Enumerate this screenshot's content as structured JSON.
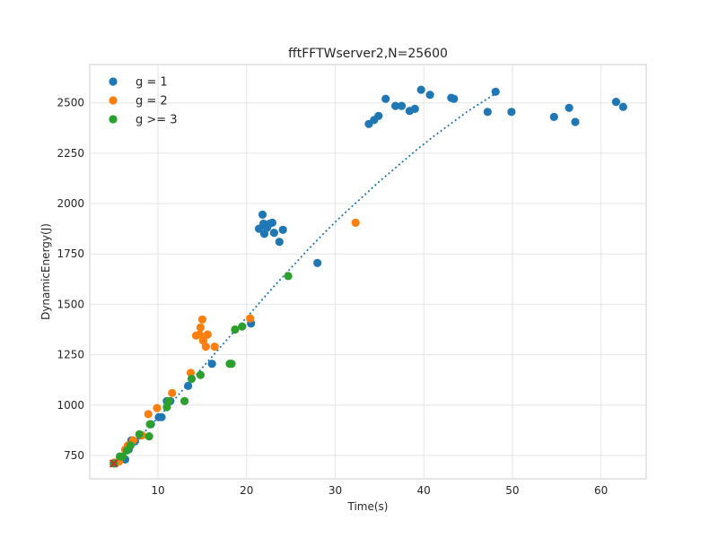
{
  "chart_data": {
    "type": "scatter",
    "title": "fftFFTWserver2,N=25600",
    "xlabel": "Time(s)",
    "ylabel": "DynamicEnergy(J)",
    "xlim": [
      2.3,
      65.1
    ],
    "ylim": [
      634,
      2690
    ],
    "xticks": [
      10,
      20,
      30,
      40,
      50,
      60
    ],
    "yticks": [
      750,
      1000,
      1250,
      1500,
      1750,
      2000,
      2250,
      2500
    ],
    "xtick_labels": [
      "10",
      "20",
      "30",
      "40",
      "50",
      "60"
    ],
    "ytick_labels": [
      "750",
      "1000",
      "1250",
      "1500",
      "1750",
      "2000",
      "2250",
      "2500"
    ],
    "grid": true,
    "legend_position": "top-left",
    "series": [
      {
        "name": "g = 1",
        "color": "#1f77b4",
        "points": [
          [
            5.2,
            712
          ],
          [
            5.9,
            735
          ],
          [
            6.3,
            730
          ],
          [
            6.7,
            780
          ],
          [
            7.0,
            825
          ],
          [
            7.4,
            820
          ],
          [
            8.0,
            850
          ],
          [
            9.2,
            905
          ],
          [
            10.1,
            940
          ],
          [
            10.4,
            940
          ],
          [
            11.0,
            1020
          ],
          [
            11.4,
            1020
          ],
          [
            13.4,
            1095
          ],
          [
            16.1,
            1205
          ],
          [
            20.5,
            1405
          ],
          [
            21.4,
            1875
          ],
          [
            21.8,
            1945
          ],
          [
            21.9,
            1900
          ],
          [
            22.0,
            1850
          ],
          [
            22.3,
            1880
          ],
          [
            22.6,
            1900
          ],
          [
            22.9,
            1905
          ],
          [
            23.1,
            1855
          ],
          [
            23.7,
            1810
          ],
          [
            24.1,
            1870
          ],
          [
            28.0,
            1705
          ],
          [
            33.8,
            2395
          ],
          [
            34.4,
            2415
          ],
          [
            34.9,
            2435
          ],
          [
            35.7,
            2520
          ],
          [
            36.8,
            2485
          ],
          [
            37.5,
            2485
          ],
          [
            38.4,
            2460
          ],
          [
            39.0,
            2470
          ],
          [
            39.7,
            2565
          ],
          [
            40.7,
            2540
          ],
          [
            43.1,
            2525
          ],
          [
            43.4,
            2520
          ],
          [
            47.2,
            2455
          ],
          [
            48.1,
            2555
          ],
          [
            49.9,
            2455
          ],
          [
            54.7,
            2430
          ],
          [
            56.4,
            2475
          ],
          [
            57.1,
            2405
          ],
          [
            61.7,
            2505
          ],
          [
            62.5,
            2480
          ]
        ]
      },
      {
        "name": "g = 2",
        "color": "#ff7f0e",
        "points": [
          [
            5.1,
            715
          ],
          [
            5.6,
            720
          ],
          [
            6.3,
            780
          ],
          [
            6.6,
            800
          ],
          [
            7.2,
            825
          ],
          [
            8.2,
            850
          ],
          [
            8.9,
            955
          ],
          [
            9.9,
            985
          ],
          [
            11.6,
            1060
          ],
          [
            13.7,
            1160
          ],
          [
            14.3,
            1345
          ],
          [
            14.7,
            1350
          ],
          [
            14.8,
            1385
          ],
          [
            15.0,
            1425
          ],
          [
            15.1,
            1320
          ],
          [
            15.4,
            1290
          ],
          [
            15.6,
            1350
          ],
          [
            16.4,
            1290
          ],
          [
            20.4,
            1430
          ],
          [
            32.3,
            1905
          ]
        ]
      },
      {
        "name": "g >= 3",
        "color": "#2ca02c",
        "points": [
          [
            5.0,
            710
          ],
          [
            5.7,
            745
          ],
          [
            6.0,
            745
          ],
          [
            6.5,
            775
          ],
          [
            6.9,
            800
          ],
          [
            7.9,
            855
          ],
          [
            9.0,
            845
          ],
          [
            9.1,
            905
          ],
          [
            11.0,
            990
          ],
          [
            11.2,
            1020
          ],
          [
            13.0,
            1020
          ],
          [
            13.8,
            1130
          ],
          [
            14.8,
            1150
          ],
          [
            18.1,
            1205
          ],
          [
            18.3,
            1205
          ],
          [
            18.7,
            1375
          ],
          [
            19.5,
            1390
          ],
          [
            24.7,
            1640
          ]
        ]
      }
    ],
    "fit_curve": {
      "style": "dotted",
      "color": "#1f77b4",
      "points": [
        [
          5.0,
          712
        ],
        [
          7.0,
          800
        ],
        [
          9.0,
          890
        ],
        [
          11.0,
          985
        ],
        [
          13.0,
          1085
        ],
        [
          15.0,
          1185
        ],
        [
          17.0,
          1285
        ],
        [
          19.0,
          1385
        ],
        [
          21.0,
          1485
        ],
        [
          23.0,
          1585
        ],
        [
          25.0,
          1680
        ],
        [
          27.0,
          1775
        ],
        [
          29.0,
          1865
        ],
        [
          31.0,
          1950
        ],
        [
          33.0,
          2030
        ],
        [
          35.0,
          2110
        ],
        [
          37.0,
          2185
        ],
        [
          39.0,
          2260
        ],
        [
          41.0,
          2330
        ],
        [
          43.0,
          2395
        ],
        [
          45.0,
          2460
        ],
        [
          47.0,
          2515
        ],
        [
          48.2,
          2550
        ]
      ]
    },
    "crossing_marker": {
      "color": "#d62728",
      "x": 5.0,
      "y": 710
    }
  }
}
